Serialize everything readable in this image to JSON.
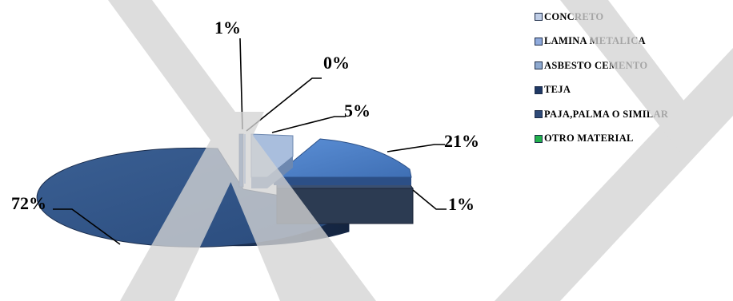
{
  "chart_data": {
    "type": "pie",
    "style": "3d exploded",
    "title": "",
    "slices": [
      {
        "label": "CONCRETO",
        "value": 1,
        "display": "1%",
        "color": "#2f5597"
      },
      {
        "label": "LAMINA METALICA",
        "value": 0,
        "display": "0%",
        "color": "#8faadc"
      },
      {
        "label": "ASBESTO CEMENTO",
        "value": 5,
        "display": "5%",
        "color": "#8ea9cf"
      },
      {
        "label": "TEJA",
        "value": 21,
        "display": "21%",
        "color": "#4f81c8"
      },
      {
        "label": "PAJA,PALMA O SIMILAR",
        "value": 1,
        "display": "1%",
        "color": "#36475f"
      },
      {
        "label": "OTRO MATERIAL",
        "value": 72,
        "display": "72%",
        "color": "#2a4b7c"
      }
    ],
    "legend_position": "right",
    "legend": [
      {
        "label": "CONCRETO",
        "color": "#bfcde6"
      },
      {
        "label": "LAMINA METALICA",
        "color": "#8faadc"
      },
      {
        "label": "ASBESTO CEMENTO",
        "color": "#8ea9cf"
      },
      {
        "label": "TEJA",
        "color": "#1f3864"
      },
      {
        "label": "PAJA,PALMA O SIMILAR",
        "color": "#2f4a78"
      },
      {
        "label": "OTRO MATERIAL",
        "color": "#22b14c"
      }
    ]
  }
}
